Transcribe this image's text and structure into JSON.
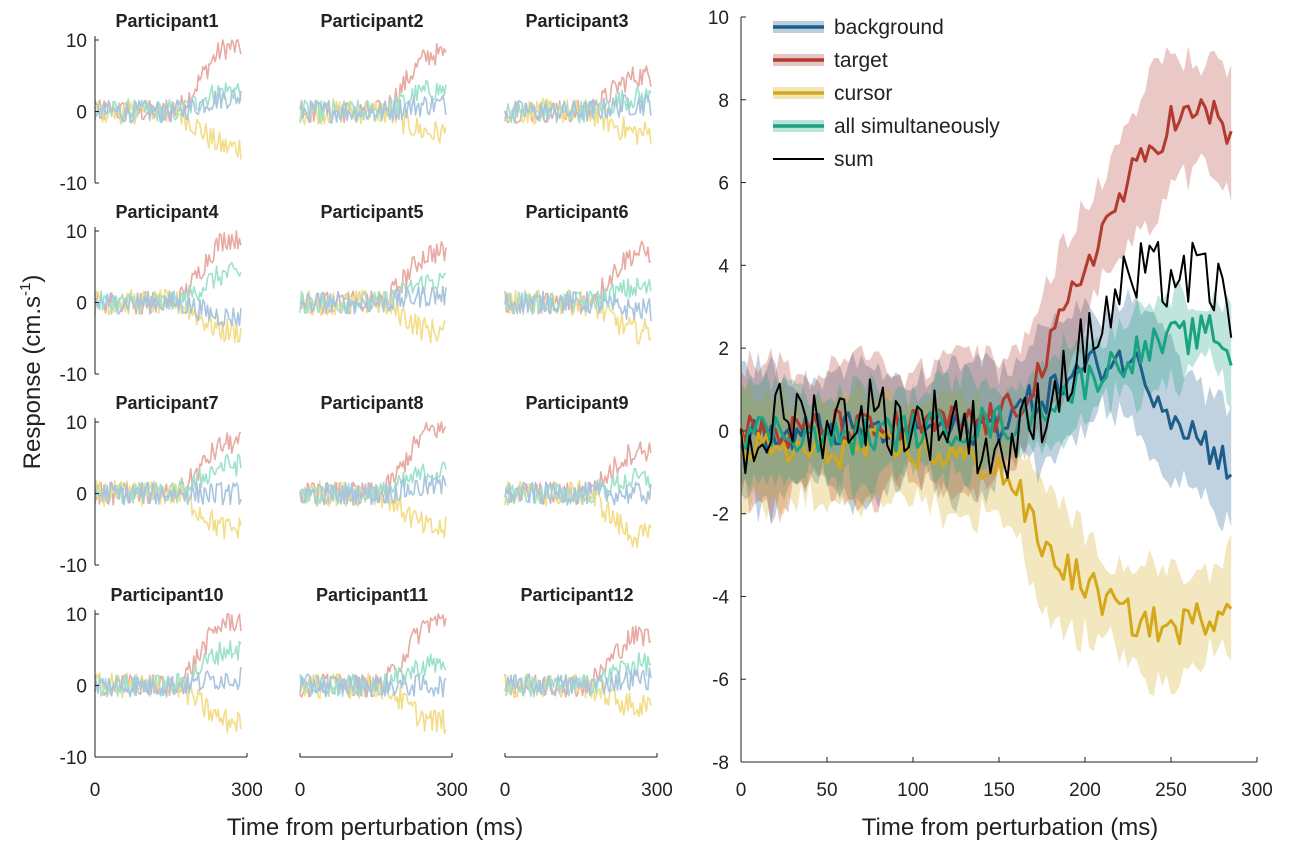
{
  "colors": {
    "background": "#1d5d8c",
    "target": "#b23a2f",
    "cursor": "#d4a81a",
    "all": "#1aa383",
    "sum": "#000000",
    "background_light": "#a9c5de",
    "target_light": "#e8aaa2",
    "cursor_light": "#f3dd87",
    "all_light": "#9fe2cc"
  },
  "left_panel": {
    "y_label": "Response (cm.s",
    "y_label_sup": "-1",
    "y_label_end": ")",
    "x_label": "Time from perturbation (ms)",
    "y_ticks": [
      "10",
      "0",
      "-10"
    ],
    "x_ticks": [
      "0",
      "300"
    ],
    "participants": [
      "Participant1",
      "Participant2",
      "Participant3",
      "Participant4",
      "Participant5",
      "Participant6",
      "Participant7",
      "Participant8",
      "Participant9",
      "Participant10",
      "Participant11",
      "Participant12"
    ]
  },
  "right_panel": {
    "x_label": "Time from perturbation (ms)",
    "y_ticks": [
      "10",
      "8",
      "6",
      "4",
      "2",
      "0",
      "-2",
      "-4",
      "-6",
      "-8"
    ],
    "x_ticks": [
      "0",
      "50",
      "100",
      "150",
      "200",
      "250",
      "300"
    ],
    "legend": [
      "background",
      "target",
      "cursor",
      "all simultaneously",
      "sum"
    ]
  },
  "chart_data": [
    {
      "type": "line",
      "panel": "participants (small multiples, 4x3)",
      "xlim": [
        0,
        300
      ],
      "ylim": [
        -10,
        10
      ],
      "series_names": [
        "background",
        "target",
        "cursor",
        "all simultaneously"
      ],
      "final_values_approx": {
        "target": [
          9,
          8,
          5,
          9,
          7,
          7,
          7,
          9,
          6,
          9,
          9,
          7
        ],
        "cursor": [
          -5,
          -3,
          -3,
          -4,
          -4,
          -4,
          -5,
          -5,
          -6,
          -5,
          -5,
          -3
        ],
        "all simultaneously": [
          3,
          3,
          2,
          4,
          3,
          2,
          4,
          3,
          2,
          5,
          3,
          3
        ],
        "background": [
          2,
          1,
          1,
          -2,
          1,
          -1,
          0,
          1,
          0,
          1,
          0,
          1
        ]
      }
    },
    {
      "type": "line",
      "panel": "group mean with shaded error",
      "xlim": [
        0,
        300
      ],
      "ylim": [
        -8,
        10
      ],
      "x": [
        0,
        25,
        50,
        75,
        100,
        125,
        150,
        160,
        175,
        200,
        225,
        250,
        275,
        287
      ],
      "series": [
        {
          "name": "background",
          "values": [
            0,
            -0.2,
            0.1,
            -0.1,
            0.1,
            0,
            0.2,
            0.5,
            0.8,
            1.5,
            1.8,
            0.5,
            -0.5,
            -0.9
          ],
          "band": 1.7
        },
        {
          "name": "target",
          "values": [
            0,
            -0.1,
            0.1,
            0,
            0.1,
            0.2,
            0.3,
            0.6,
            1.5,
            4.0,
            6.0,
            7.5,
            7.7,
            7.0
          ],
          "band": 1.8
        },
        {
          "name": "cursor",
          "values": [
            -0.4,
            -0.5,
            -0.5,
            -0.4,
            -0.5,
            -0.6,
            -0.9,
            -1.4,
            -2.8,
            -3.7,
            -4.5,
            -4.8,
            -4.4,
            -4.0
          ],
          "band": 1.5
        },
        {
          "name": "all simultaneously",
          "values": [
            0,
            0,
            -0.2,
            -0.1,
            0,
            0.1,
            0.2,
            0.2,
            0.6,
            1.2,
            1.8,
            2.2,
            2.4,
            1.7
          ],
          "band": 1.2
        },
        {
          "name": "sum",
          "values": [
            -0.5,
            0.4,
            0.2,
            0.5,
            0.1,
            0.3,
            -0.6,
            -0.3,
            0.6,
            2.0,
            3.6,
            3.8,
            3.6,
            2.2
          ]
        }
      ]
    }
  ]
}
